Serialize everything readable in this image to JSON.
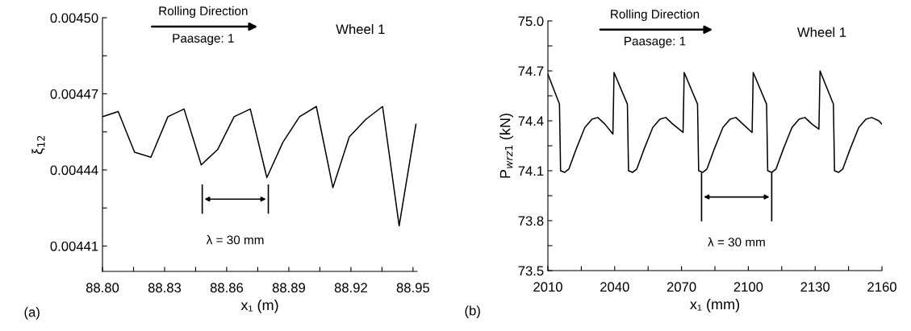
{
  "chart_data": [
    {
      "type": "line",
      "xlabel": "x₁ (m)",
      "ylabel": "ξ$_{12}$",
      "x": [
        88.8,
        88.8076,
        88.8155,
        88.8234,
        88.8316,
        88.8394,
        88.8477,
        88.8556,
        88.8636,
        88.8714,
        88.8794,
        88.8872,
        88.8952,
        88.9033,
        88.9113,
        88.9192,
        88.9273,
        88.9353,
        88.9433,
        88.9514
      ],
      "series": [
        {
          "color": "#000000",
          "values": [
            0.004461,
            0.004463,
            0.004447,
            0.004445,
            0.004461,
            0.004464,
            0.004442,
            0.004448,
            0.004461,
            0.004464,
            0.004437,
            0.004451,
            0.004461,
            0.004465,
            0.004433,
            0.004453,
            0.00446,
            0.004465,
            0.004418,
            0.004458
          ]
        }
      ],
      "xlim": [
        88.8,
        88.952
      ],
      "xticks": [
        {
          "value": 88.8,
          "label": "88.80"
        },
        {
          "value": 88.815,
          "label": null
        },
        {
          "value": 88.83,
          "label": "88.83"
        },
        {
          "value": 88.845,
          "label": null
        },
        {
          "value": 88.86,
          "label": "88.86"
        },
        {
          "value": 88.875,
          "label": null
        },
        {
          "value": 88.89,
          "label": "88.89"
        },
        {
          "value": 88.905,
          "label": null
        },
        {
          "value": 88.92,
          "label": "88.92"
        },
        {
          "value": 88.935,
          "label": null
        },
        {
          "value": 88.95,
          "label": "88.95"
        }
      ],
      "ylim": [
        0.0044,
        0.0045
      ],
      "yticks": [
        {
          "value": 0.00441,
          "label": "0.00441"
        },
        {
          "value": 0.004425,
          "label": null
        },
        {
          "value": 0.00444,
          "label": "0.00444"
        },
        {
          "value": 0.004455,
          "label": null
        },
        {
          "value": 0.00447,
          "label": "0.00447"
        },
        {
          "value": 0.004485,
          "label": null
        },
        {
          "value": 0.0045,
          "label": "0.00450"
        }
      ],
      "grid": false,
      "legend": false,
      "marker": "none",
      "line_style": "solid",
      "annotations": [
        "Rolling Direction",
        "Paasage: 1",
        "Wheel 1",
        "λ = 30 mm",
        "(a)"
      ]
    },
    {
      "type": "line",
      "xlabel": "x₁ (mm)",
      "ylabel": "P$_{wrz1}$ (kN)",
      "x": [
        2010,
        2015.2,
        2015.7,
        2017.5,
        2019.4,
        2022.7,
        2026.6,
        2029.8,
        2032.4,
        2035.6,
        2039.2,
        2039.7,
        2045.7,
        2046.2,
        2048.0,
        2049.9,
        2053.2,
        2057.1,
        2060.3,
        2062.9,
        2066.1,
        2070.7,
        2071.2,
        2077.2,
        2077.7,
        2079.5,
        2081.4,
        2084.7,
        2088.6,
        2091.8,
        2094.4,
        2097.6,
        2101.7,
        2102.2,
        2108.2,
        2108.7,
        2110.5,
        2112.4,
        2115.7,
        2119.6,
        2122.8,
        2125.4,
        2128.6,
        2131.7,
        2132.2,
        2138.2,
        2138.7,
        2140.5,
        2142.4,
        2145.7,
        2149.6,
        2152.8,
        2155.4,
        2158.6,
        2160
      ],
      "series": [
        {
          "color": "#000000",
          "values": [
            74.68,
            74.5,
            74.1,
            74.09,
            74.11,
            74.23,
            74.36,
            74.41,
            74.42,
            74.38,
            74.32,
            74.69,
            74.5,
            74.1,
            74.09,
            74.11,
            74.23,
            74.36,
            74.41,
            74.42,
            74.38,
            74.33,
            74.69,
            74.5,
            74.1,
            74.09,
            74.11,
            74.23,
            74.36,
            74.41,
            74.42,
            74.38,
            74.33,
            74.69,
            74.5,
            74.1,
            74.09,
            74.11,
            74.23,
            74.36,
            74.41,
            74.42,
            74.38,
            74.35,
            74.7,
            74.5,
            74.1,
            74.09,
            74.11,
            74.23,
            74.36,
            74.41,
            74.42,
            74.4,
            74.38
          ]
        }
      ],
      "xlim": [
        2010,
        2160
      ],
      "xticks": [
        2010,
        {
          "value": 2025,
          "label": null
        },
        2040,
        {
          "value": 2055,
          "label": null
        },
        2070,
        {
          "value": 2085,
          "label": null
        },
        2100,
        {
          "value": 2115,
          "label": null
        },
        2130,
        {
          "value": 2145,
          "label": null
        },
        2160
      ],
      "ylim": [
        73.5,
        75.0
      ],
      "yticks": [
        73.5,
        {
          "value": 73.65,
          "label": null
        },
        73.8,
        {
          "value": 73.95,
          "label": null
        },
        74.1,
        {
          "value": 74.25,
          "label": null
        },
        74.4,
        {
          "value": 74.55,
          "label": null
        },
        74.7,
        {
          "value": 74.85,
          "label": null
        },
        {
          "value": 75.0,
          "label": "75.0"
        }
      ],
      "grid": false,
      "legend": false,
      "marker": "none",
      "line_style": "solid",
      "annotations": [
        "Rolling Direction",
        "Paasage: 1",
        "Wheel 1",
        "λ = 30 mm",
        "(b)"
      ]
    }
  ]
}
